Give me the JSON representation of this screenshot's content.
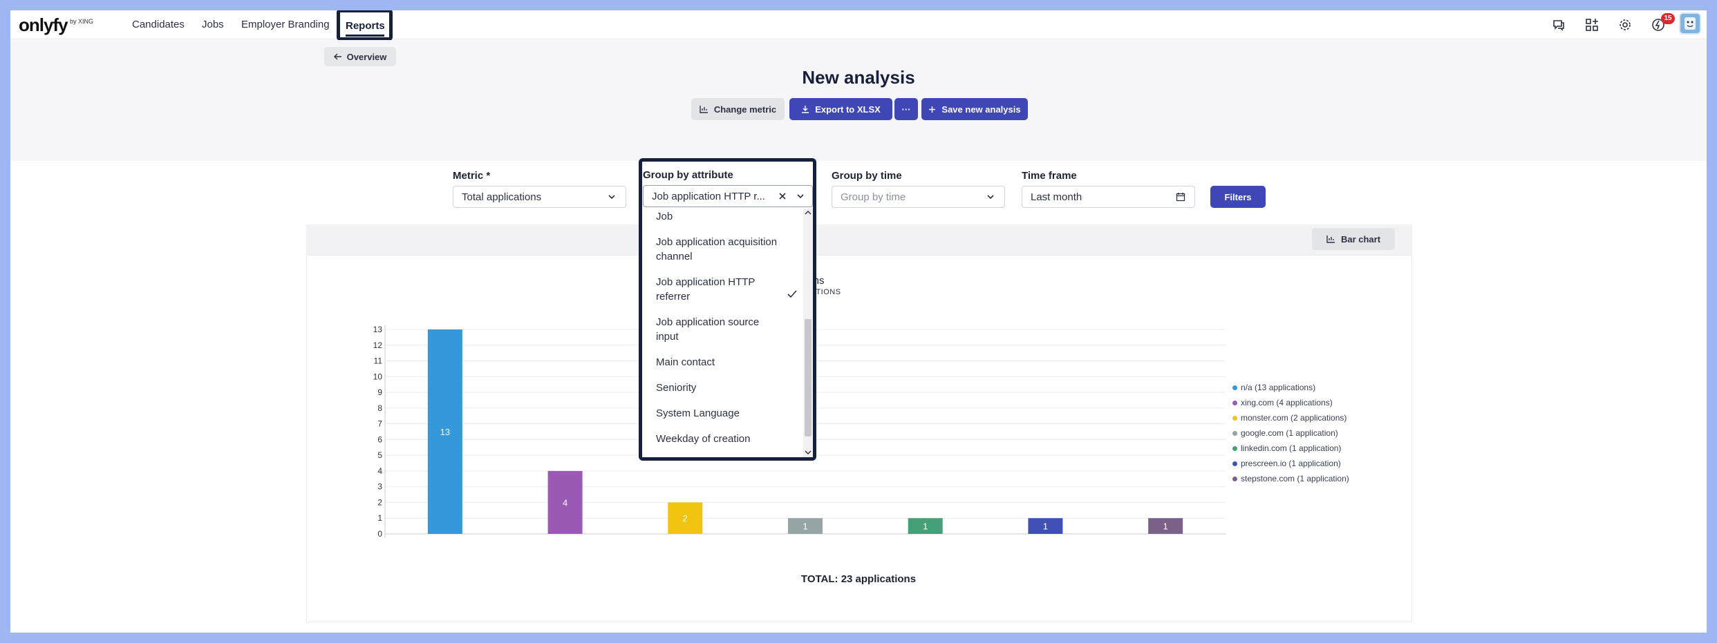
{
  "nav": {
    "logo": "onlyfy",
    "logo_sub": "by XING",
    "items": [
      "Candidates",
      "Jobs",
      "Employer Branding"
    ],
    "active": "Reports",
    "notification_count": "15"
  },
  "header": {
    "back_label": "Overview",
    "title": "New analysis",
    "buttons": {
      "change_metric": "Change metric",
      "export": "Export to XLSX",
      "more": "···",
      "save": "Save new analysis"
    }
  },
  "filters": {
    "metric_label": "Metric *",
    "metric_value": "Total applications",
    "group_attr_label": "Group by attribute",
    "group_attr_value": "Job application HTTP r...",
    "group_time_label": "Group by time",
    "group_time_placeholder": "Group by time",
    "timeframe_label": "Time frame",
    "timeframe_value": "Last month",
    "filters_button": "Filters"
  },
  "dropdown": {
    "options": [
      {
        "label": "Job",
        "selected": false
      },
      {
        "label": "Job application acquisition channel",
        "selected": false
      },
      {
        "label": "Job application HTTP referrer",
        "selected": true
      },
      {
        "label": "Job application source input",
        "selected": false
      },
      {
        "label": "Main contact",
        "selected": false
      },
      {
        "label": "Seniority",
        "selected": false
      },
      {
        "label": "System Language",
        "selected": false
      },
      {
        "label": "Weekday of creation",
        "selected": false
      }
    ]
  },
  "chart_toolbar": {
    "chart_type_button": "Bar chart"
  },
  "chart_data": {
    "type": "bar",
    "title_fragment": "ions",
    "subtitle_fragment": "CATIONS",
    "categories": [
      "n/a",
      "xing.com",
      "monster.com",
      "google.com",
      "linkedin.com",
      "prescreen.io",
      "stepstone.com"
    ],
    "values": [
      13,
      4,
      2,
      1,
      1,
      1,
      1
    ],
    "colors": [
      "#3498db",
      "#9b59b6",
      "#f1c40f",
      "#95a5a6",
      "#45a079",
      "#3f51b5",
      "#7b6188"
    ],
    "ylim": [
      0,
      13
    ],
    "yticks": [
      0,
      1,
      2,
      3,
      4,
      5,
      6,
      7,
      8,
      9,
      10,
      11,
      12,
      13
    ],
    "legend": [
      "n/a (13 applications)",
      "xing.com (4 applications)",
      "monster.com (2 applications)",
      "google.com (1 application)",
      "linkedin.com (1 application)",
      "prescreen.io (1 application)",
      "stepstone.com (1 application)"
    ],
    "legend_position": "right",
    "grid": true,
    "total_label": "TOTAL: 23 applications"
  }
}
